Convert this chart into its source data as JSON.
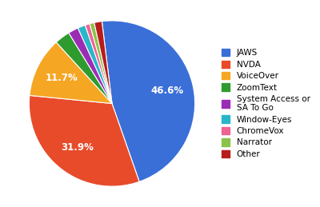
{
  "labels": [
    "JAWS",
    "NVDA",
    "VoiceOver",
    "ZoomText",
    "System Access or\nSA To Go",
    "Window-Eyes",
    "ChromeVox",
    "Narrator",
    "Other"
  ],
  "values": [
    46.6,
    31.9,
    11.7,
    3.0,
    2.0,
    1.5,
    0.9,
    0.9,
    1.5
  ],
  "colors": [
    "#3a6fd8",
    "#e84b2a",
    "#f5a623",
    "#2e9b2e",
    "#9b2db5",
    "#29b6c8",
    "#f06292",
    "#8bc34a",
    "#b71c1c"
  ],
  "legend_labels": [
    "JAWS",
    "NVDA",
    "VoiceOver",
    "ZoomText",
    "System Access or\nSA To Go",
    "Window-Eyes",
    "ChromeVox",
    "Narrator",
    "Other"
  ],
  "startangle": 97,
  "counterclock": false,
  "background_color": "#ffffff"
}
